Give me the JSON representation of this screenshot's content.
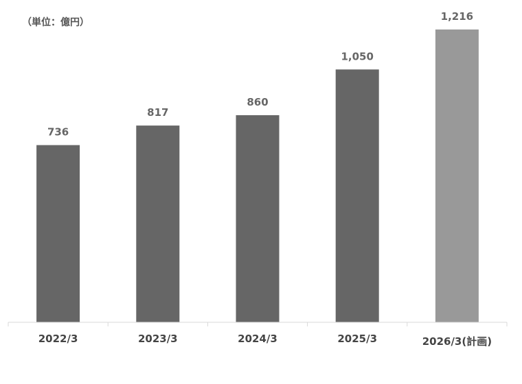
{
  "chart_data": {
    "type": "bar",
    "unit_label": "（単位：億円）",
    "categories": [
      "2022/3",
      "2023/3",
      "2024/3",
      "2025/3",
      "2026/3(計画)"
    ],
    "values": [
      736,
      817,
      860,
      1050,
      1216
    ],
    "value_labels": [
      "736",
      "817",
      "860",
      "1,050",
      "1,216"
    ],
    "bar_colors": [
      "#666666",
      "#666666",
      "#666666",
      "#666666",
      "#999999"
    ],
    "axis_color": "#d9d9d9",
    "ylim": [
      0,
      1216
    ],
    "grid": false,
    "legend": "none"
  }
}
